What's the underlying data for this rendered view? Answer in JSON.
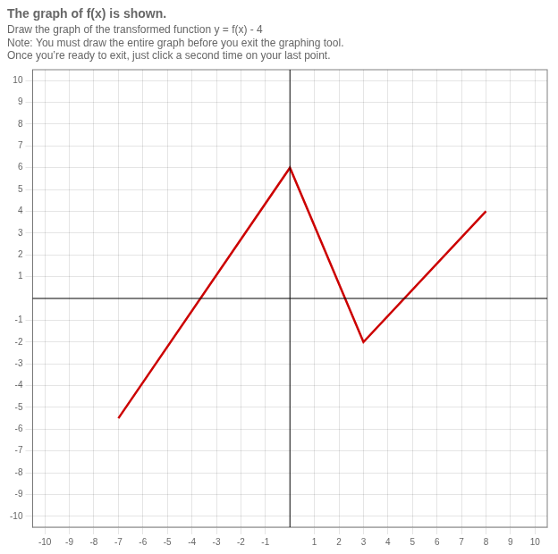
{
  "chart_data": {
    "type": "line",
    "title": "The graph of f(x) is shown.",
    "subtitle": "Draw the graph of the transformed function y = f(x) - 4",
    "annotations": [
      "Note: You must draw the entire graph before you exit the graphing tool.",
      "Once you’re ready to exit, just click a second time on your last point."
    ],
    "x": [
      -7,
      0,
      3,
      8
    ],
    "values": [
      -5.5,
      6,
      -2,
      4
    ],
    "color": "#cc0000",
    "xlim": [
      -10.5,
      10.5
    ],
    "ylim": [
      -10.5,
      10.5
    ],
    "xticks": [
      -10,
      -9,
      -8,
      -7,
      -6,
      -5,
      -4,
      -3,
      -2,
      -1,
      1,
      2,
      3,
      4,
      5,
      6,
      7,
      8,
      9,
      10
    ],
    "yticks": [
      -10,
      -9,
      -8,
      -7,
      -6,
      -5,
      -4,
      -3,
      -2,
      -1,
      1,
      2,
      3,
      4,
      5,
      6,
      7,
      8,
      9,
      10
    ],
    "grid": true
  }
}
